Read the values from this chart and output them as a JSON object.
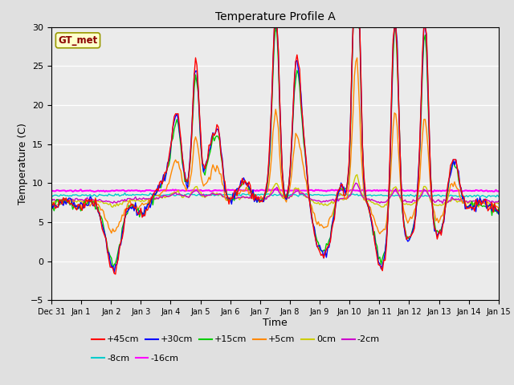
{
  "title": "Temperature Profile A",
  "xlabel": "Time",
  "ylabel": "Temperature (C)",
  "ylim": [
    -5,
    30
  ],
  "yticks": [
    -5,
    0,
    5,
    10,
    15,
    20,
    25,
    30
  ],
  "annotation_text": "GT_met",
  "annotation_color": "#8B0000",
  "annotation_bg": "#FFFFCC",
  "annotation_border": "#999900",
  "series_order": [
    "-16cm",
    "-8cm",
    "0cm",
    "-2cm",
    "+5cm",
    "+15cm",
    "+30cm",
    "+45cm"
  ],
  "series": {
    "+45cm": {
      "color": "#FF0000",
      "lw": 1.0
    },
    "+30cm": {
      "color": "#0000FF",
      "lw": 1.0
    },
    "+15cm": {
      "color": "#00CC00",
      "lw": 1.0
    },
    "+5cm": {
      "color": "#FF8800",
      "lw": 1.0
    },
    "0cm": {
      "color": "#CCCC00",
      "lw": 1.0
    },
    "-2cm": {
      "color": "#CC00CC",
      "lw": 1.0
    },
    "-8cm": {
      "color": "#00CCCC",
      "lw": 1.0
    },
    "-16cm": {
      "color": "#FF00FF",
      "lw": 1.5
    }
  },
  "legend_row1": [
    "+45cm",
    "+30cm",
    "+15cm",
    "+5cm",
    "0cm",
    "-2cm"
  ],
  "legend_row2": [
    "-8cm",
    "-16cm"
  ],
  "bg_color": "#E0E0E0",
  "plot_bg": "#EBEBEB",
  "grid_color": "#FFFFFF",
  "figsize": [
    6.4,
    4.8
  ],
  "dpi": 100,
  "n_points": 336
}
